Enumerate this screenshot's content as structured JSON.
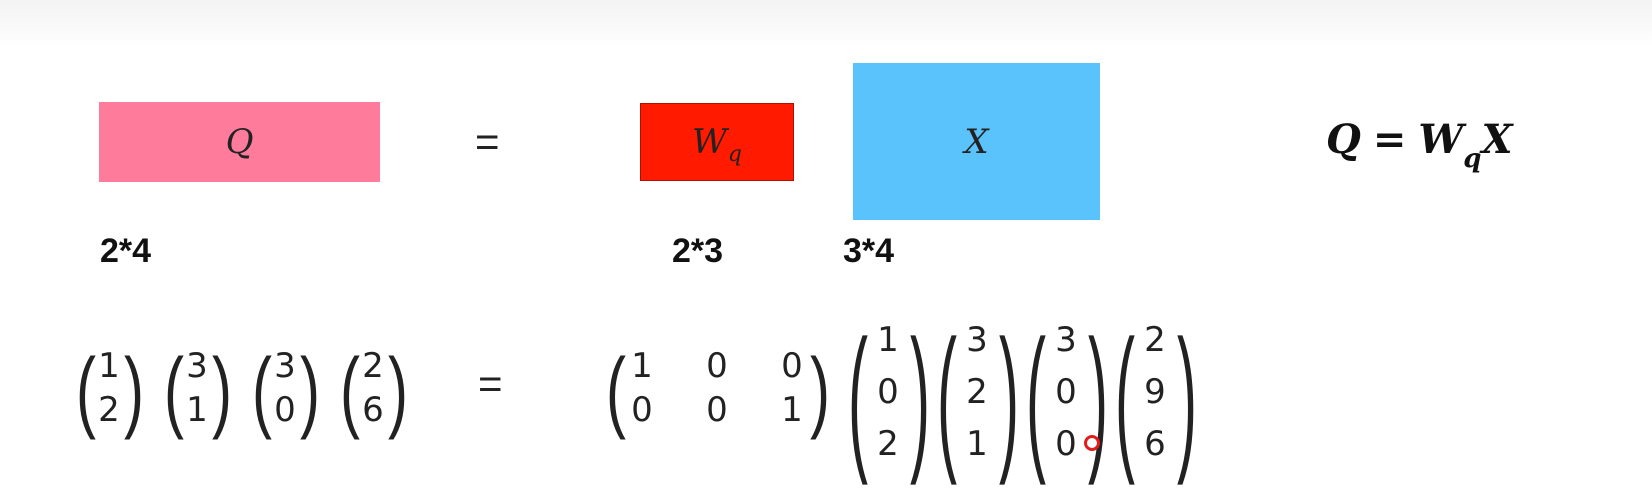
{
  "diagram": {
    "boxes": {
      "q": {
        "label": "Q",
        "color": "#ff7b9c"
      },
      "wq": {
        "label": "W",
        "sub": "q",
        "color": "#ff1a00"
      },
      "x": {
        "label": "X",
        "color": "#5bc3fb"
      }
    },
    "equals": "=",
    "dimensions": {
      "q": "2*4",
      "wq": "2*3",
      "x": "3*4"
    },
    "formula": {
      "lhs": "Q",
      "eq": "=",
      "w": "W",
      "sub": "q",
      "x": "X"
    }
  },
  "matrices": {
    "q_columns": [
      [
        "1",
        "2"
      ],
      [
        "3",
        "1"
      ],
      [
        "3",
        "0"
      ],
      [
        "2",
        "6"
      ]
    ],
    "wq_rows": [
      [
        "1",
        "0",
        "0"
      ],
      [
        "0",
        "0",
        "1"
      ]
    ],
    "x_columns": [
      [
        "1",
        "0",
        "2"
      ],
      [
        "3",
        "2",
        "1"
      ],
      [
        "3",
        "0",
        "0"
      ],
      [
        "2",
        "9",
        "6"
      ]
    ]
  }
}
